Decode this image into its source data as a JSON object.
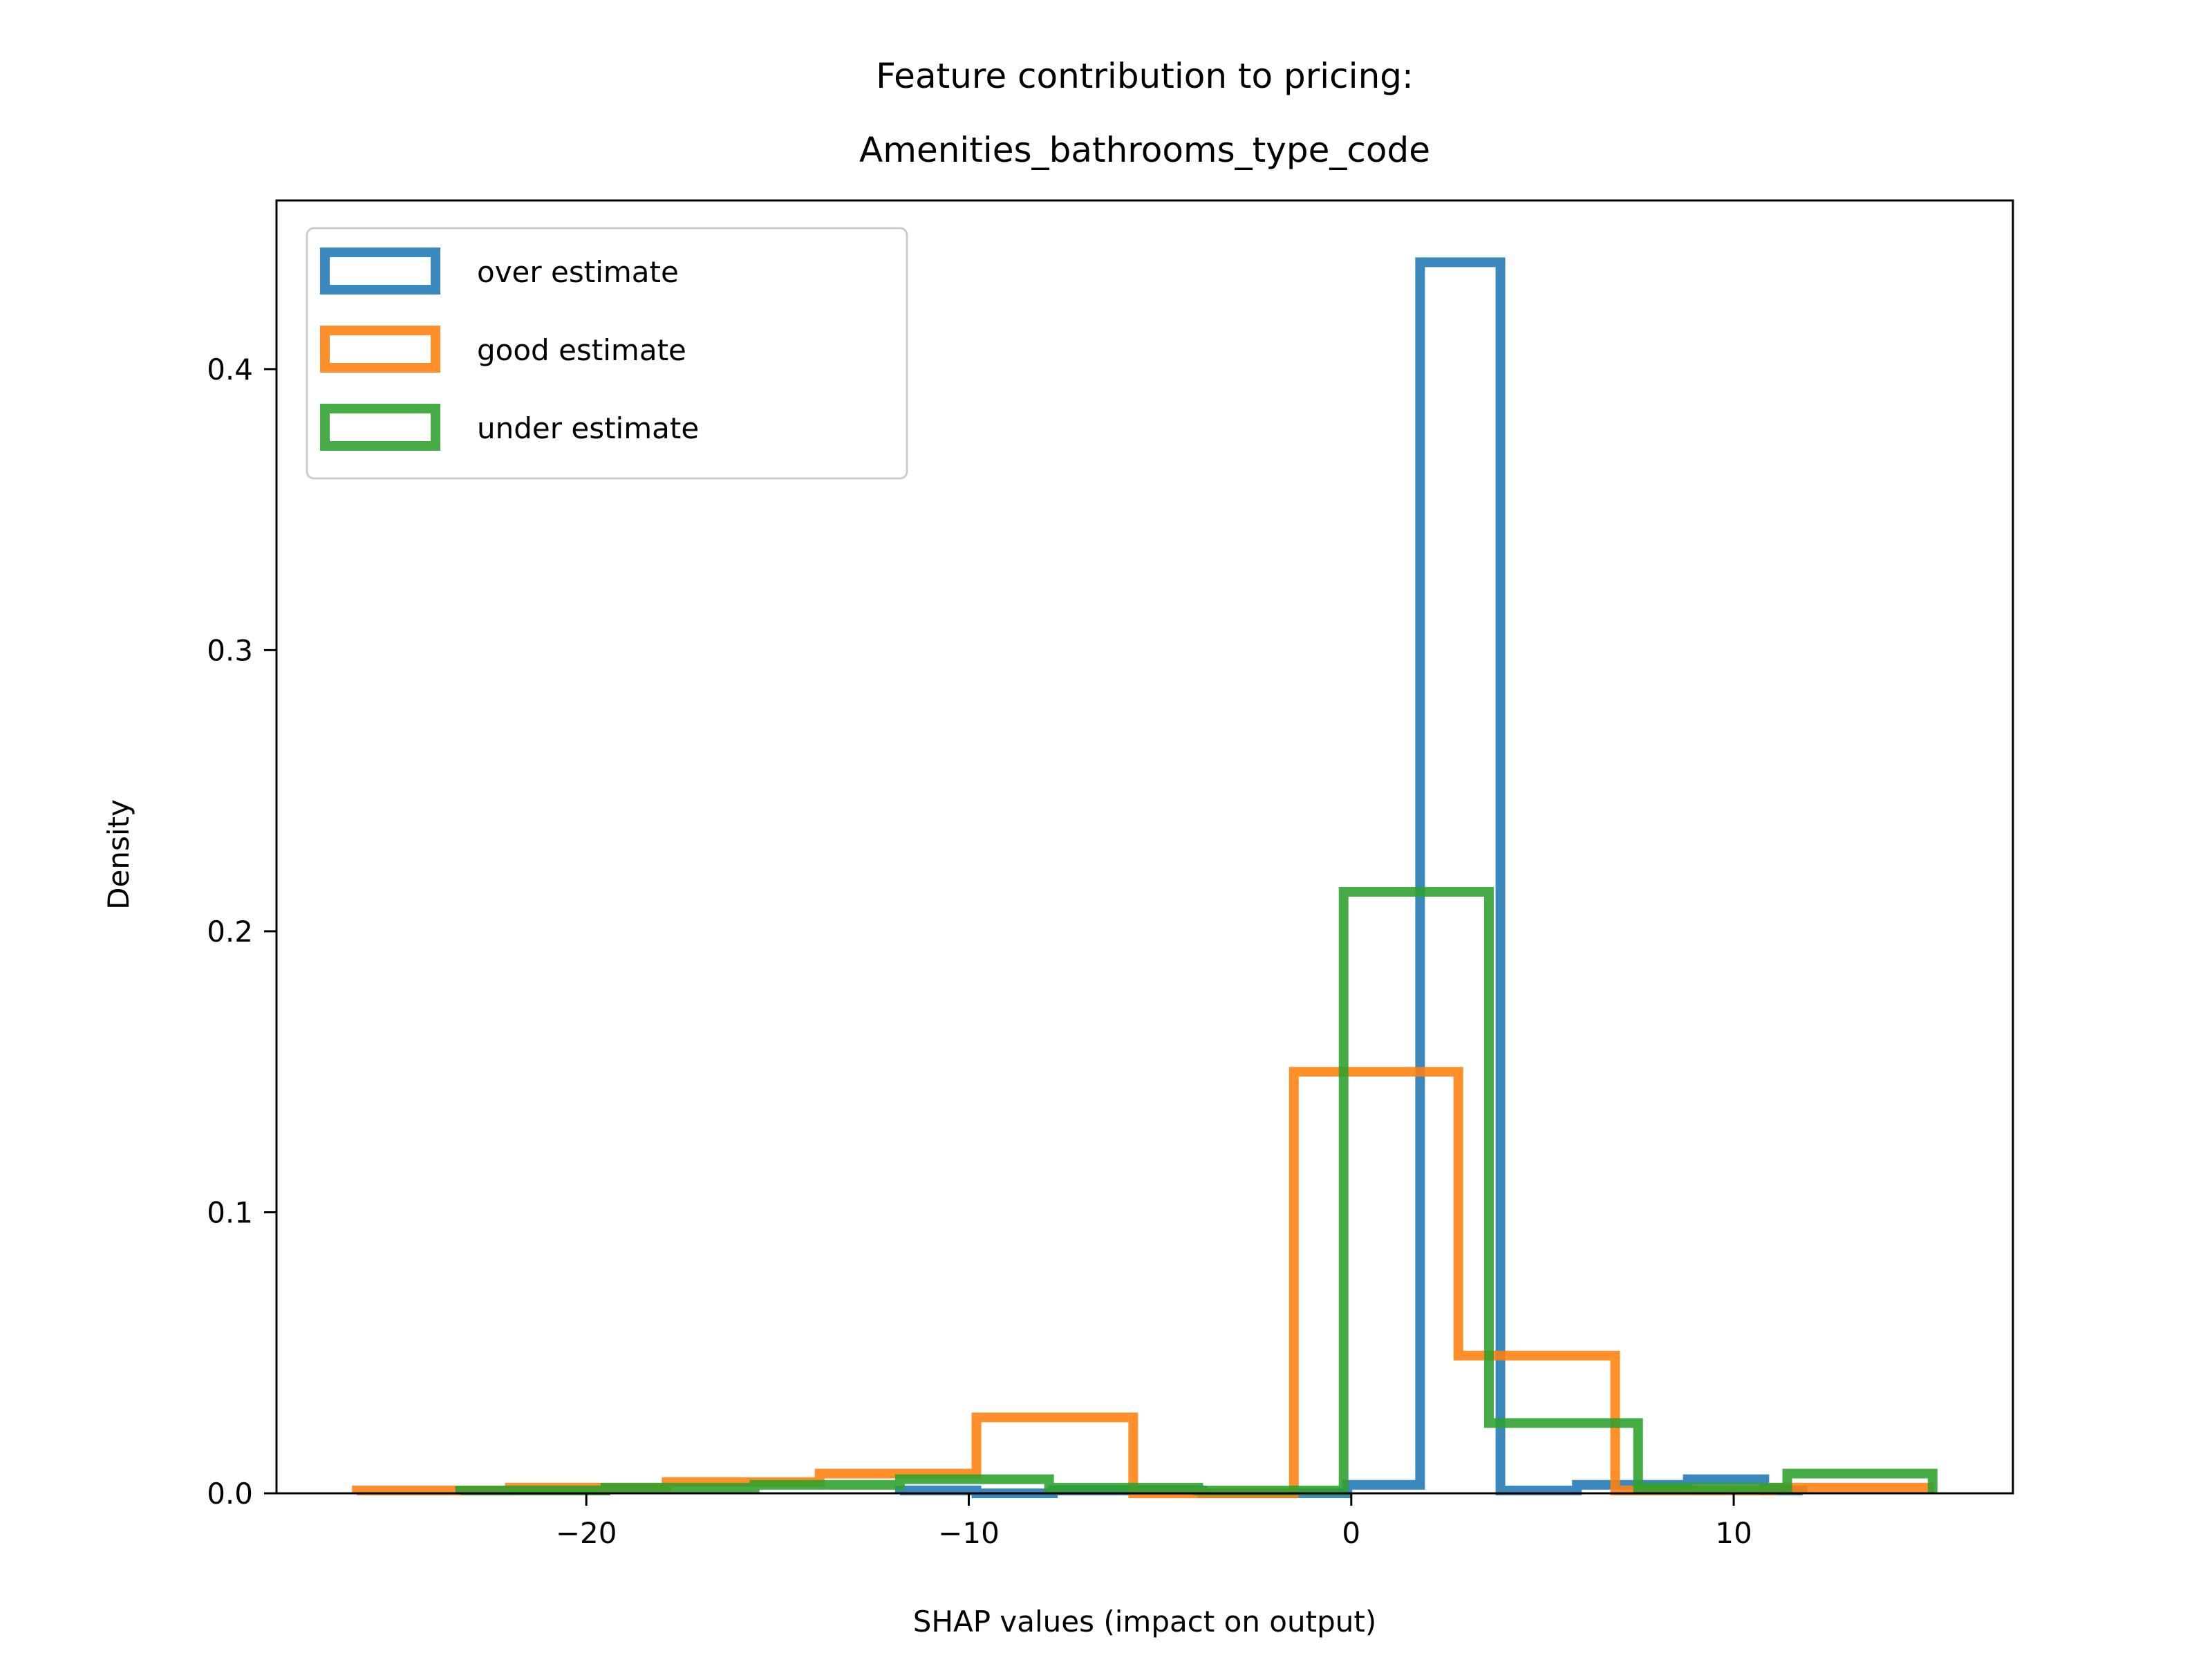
{
  "chart_data": {
    "type": "histogram",
    "title_line1": "Feature contribution to pricing:",
    "title_line2": "Amenities_bathrooms_type_code",
    "xlabel": "SHAP values (impact on output)",
    "ylabel": "Density",
    "xlim": [
      -28.1,
      17.3
    ],
    "ylim": [
      0,
      0.46
    ],
    "xticks": [
      -20,
      -10,
      0,
      10
    ],
    "xtick_labels": [
      "−20",
      "−10",
      "0",
      "10"
    ],
    "yticks": [
      0.0,
      0.1,
      0.2,
      0.3,
      0.4
    ],
    "ytick_labels": [
      "0.0",
      "0.1",
      "0.2",
      "0.3",
      "0.4"
    ],
    "legend_position": "upper-left",
    "series": [
      {
        "name": "over estimate",
        "color": "#1f77b4",
        "bins": [
          {
            "x0": -11.8,
            "x1": -9.8,
            "y": 0.001
          },
          {
            "x0": -9.8,
            "x1": -7.8,
            "y": 0.0
          },
          {
            "x0": -7.8,
            "x1": -3.9,
            "y": 0.001
          },
          {
            "x0": -3.9,
            "x1": -0.1,
            "y": 0.0
          },
          {
            "x0": -0.1,
            "x1": 1.8,
            "y": 0.003
          },
          {
            "x0": 1.8,
            "x1": 3.9,
            "y": 0.438
          },
          {
            "x0": 3.9,
            "x1": 5.9,
            "y": 0.001
          },
          {
            "x0": 5.9,
            "x1": 8.8,
            "y": 0.003
          },
          {
            "x0": 8.8,
            "x1": 10.8,
            "y": 0.005
          },
          {
            "x0": 10.8,
            "x1": 11.8,
            "y": 0.001
          }
        ]
      },
      {
        "name": "good estimate",
        "color": "#ff7f0e",
        "bins": [
          {
            "x0": -26.0,
            "x1": -22.0,
            "y": 0.001
          },
          {
            "x0": -22.0,
            "x1": -17.9,
            "y": 0.002
          },
          {
            "x0": -17.9,
            "x1": -13.9,
            "y": 0.004
          },
          {
            "x0": -13.9,
            "x1": -9.8,
            "y": 0.007
          },
          {
            "x0": -9.8,
            "x1": -5.7,
            "y": 0.027
          },
          {
            "x0": -5.7,
            "x1": -1.5,
            "y": 0.0
          },
          {
            "x0": -1.5,
            "x1": 2.8,
            "y": 0.15
          },
          {
            "x0": 2.8,
            "x1": 6.9,
            "y": 0.049
          },
          {
            "x0": 6.9,
            "x1": 11.0,
            "y": 0.001
          },
          {
            "x0": 11.0,
            "x1": 15.1,
            "y": 0.002
          }
        ]
      },
      {
        "name": "under estimate",
        "color": "#2ca02c",
        "bins": [
          {
            "x0": -23.3,
            "x1": -19.5,
            "y": 0.001
          },
          {
            "x0": -19.5,
            "x1": -15.6,
            "y": 0.002
          },
          {
            "x0": -15.6,
            "x1": -11.8,
            "y": 0.003
          },
          {
            "x0": -11.8,
            "x1": -7.9,
            "y": 0.005
          },
          {
            "x0": -7.9,
            "x1": -4.0,
            "y": 0.002
          },
          {
            "x0": -4.0,
            "x1": -0.2,
            "y": 0.001
          },
          {
            "x0": -0.2,
            "x1": 3.6,
            "y": 0.214
          },
          {
            "x0": 3.6,
            "x1": 7.5,
            "y": 0.025
          },
          {
            "x0": 7.5,
            "x1": 11.4,
            "y": 0.002
          },
          {
            "x0": 11.4,
            "x1": 15.2,
            "y": 0.007
          }
        ]
      }
    ]
  }
}
